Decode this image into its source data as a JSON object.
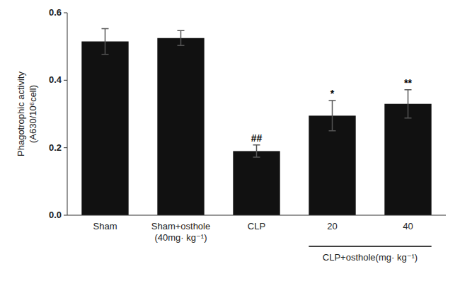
{
  "chart_data": {
    "type": "bar",
    "categories": [
      "Sham",
      "Sham+osthole\n(40mg· kg⁻¹)",
      "CLP",
      "20",
      "40"
    ],
    "values": [
      0.515,
      0.525,
      0.19,
      0.295,
      0.33
    ],
    "errors": [
      0.038,
      0.022,
      0.018,
      0.045,
      0.042
    ],
    "color": "#111111",
    "ylabel": "Phagotrophic activity\n(A630/10⁶cell)",
    "ylim": [
      0,
      0.6
    ],
    "yticks": [
      {
        "value": 0,
        "label": "0.0"
      },
      0.2,
      0.4,
      0.6
    ],
    "significance": [
      null,
      null,
      "##",
      "*",
      "**"
    ],
    "annotations": [
      {
        "text": "CLP+osthole(mg· kg⁻¹)",
        "span": [
          "20",
          "40"
        ]
      }
    ],
    "grid": false
  }
}
